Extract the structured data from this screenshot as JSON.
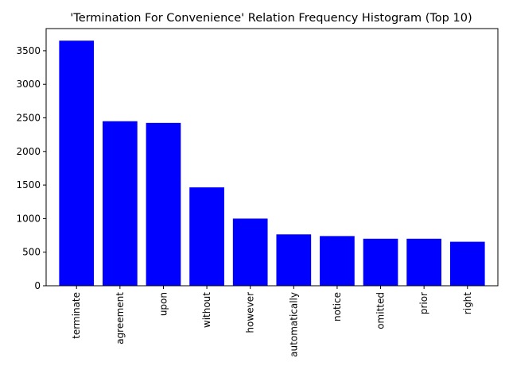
{
  "chart_data": {
    "type": "bar",
    "title": "'Termination For Convenience' Relation Frequency Histogram (Top 10)",
    "xlabel": "",
    "ylabel": "",
    "categories": [
      "terminate",
      "agreement",
      "upon",
      "without",
      "however",
      "automatically",
      "notice",
      "omitted",
      "prior",
      "right"
    ],
    "values": [
      3650,
      2450,
      2425,
      1465,
      1000,
      765,
      740,
      700,
      700,
      655
    ],
    "ylim": [
      0,
      3830
    ],
    "yticks": [
      0,
      500,
      1000,
      1500,
      2000,
      2500,
      3000,
      3500
    ],
    "bar_color": "#0000ff",
    "grid": false,
    "legend": "none"
  }
}
